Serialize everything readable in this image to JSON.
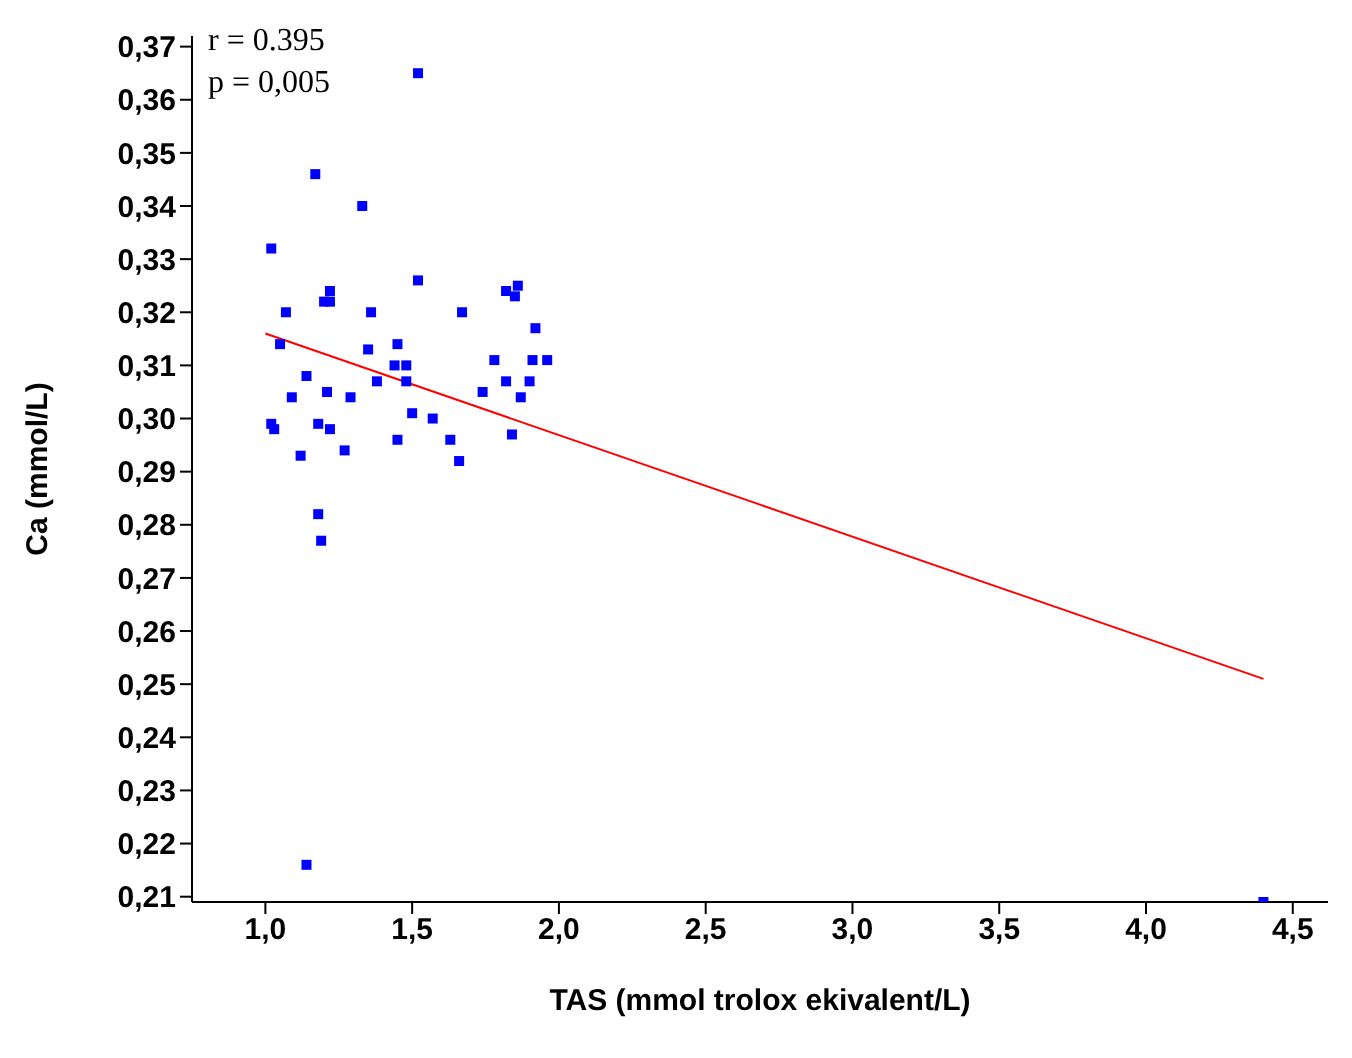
{
  "chart_data": {
    "type": "scatter",
    "xlabel": "TAS (mmol trolox ekivalent/L)",
    "ylabel": "Ca (mmol/L)",
    "annotations": [
      "r = 0.395",
      "p = 0,005"
    ],
    "xlim": [
      0.75,
      4.62
    ],
    "ylim": [
      0.209,
      0.372
    ],
    "xticks": [
      {
        "value": 1.0,
        "label": "1,0"
      },
      {
        "value": 1.5,
        "label": "1,5"
      },
      {
        "value": 2.0,
        "label": "2,0"
      },
      {
        "value": 2.5,
        "label": "2,5"
      },
      {
        "value": 3.0,
        "label": "3,0"
      },
      {
        "value": 3.5,
        "label": "3,5"
      },
      {
        "value": 4.0,
        "label": "4,0"
      },
      {
        "value": 4.5,
        "label": "4,5"
      }
    ],
    "yticks": [
      {
        "value": 0.21,
        "label": "0,21"
      },
      {
        "value": 0.22,
        "label": "0,22"
      },
      {
        "value": 0.23,
        "label": "0,23"
      },
      {
        "value": 0.24,
        "label": "0,24"
      },
      {
        "value": 0.25,
        "label": "0,25"
      },
      {
        "value": 0.26,
        "label": "0,26"
      },
      {
        "value": 0.27,
        "label": "0,27"
      },
      {
        "value": 0.28,
        "label": "0,28"
      },
      {
        "value": 0.29,
        "label": "0,29"
      },
      {
        "value": 0.3,
        "label": "0,30"
      },
      {
        "value": 0.31,
        "label": "0,31"
      },
      {
        "value": 0.32,
        "label": "0,32"
      },
      {
        "value": 0.33,
        "label": "0,33"
      },
      {
        "value": 0.34,
        "label": "0,34"
      },
      {
        "value": 0.35,
        "label": "0,35"
      },
      {
        "value": 0.36,
        "label": "0,36"
      },
      {
        "value": 0.37,
        "label": "0,37"
      }
    ],
    "series": [
      {
        "color": "#0000ff",
        "marker": "square",
        "x": [
          1.52,
          1.17,
          1.33,
          1.02,
          1.52,
          1.82,
          1.86,
          1.85,
          1.22,
          1.2,
          1.22,
          1.07,
          1.36,
          1.67,
          1.92,
          1.05,
          1.35,
          1.45,
          1.44,
          1.48,
          1.78,
          1.91,
          1.96,
          1.14,
          1.38,
          1.48,
          1.82,
          1.9,
          1.09,
          1.21,
          1.29,
          1.74,
          1.87,
          1.5,
          1.57,
          1.02,
          1.03,
          1.18,
          1.22,
          1.84,
          1.63,
          1.12,
          1.27,
          1.45,
          1.66,
          1.18,
          1.19,
          1.14,
          4.4
        ],
        "values": [
          0.365,
          0.346,
          0.34,
          0.332,
          0.326,
          0.324,
          0.325,
          0.323,
          0.324,
          0.322,
          0.322,
          0.32,
          0.32,
          0.32,
          0.317,
          0.314,
          0.313,
          0.314,
          0.31,
          0.31,
          0.311,
          0.311,
          0.311,
          0.308,
          0.307,
          0.307,
          0.307,
          0.307,
          0.304,
          0.305,
          0.304,
          0.305,
          0.304,
          0.301,
          0.3,
          0.299,
          0.298,
          0.299,
          0.298,
          0.297,
          0.296,
          0.293,
          0.294,
          0.296,
          0.292,
          0.282,
          0.277,
          0.216,
          0.209
        ]
      },
      {
        "type": "line",
        "color": "#ff0000",
        "x": [
          1.0,
          4.4
        ],
        "values": [
          0.316,
          0.251
        ]
      }
    ]
  }
}
